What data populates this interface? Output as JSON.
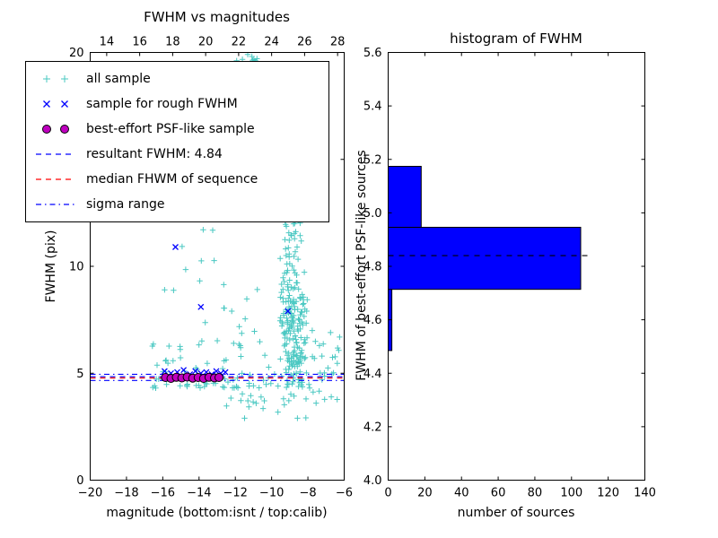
{
  "figure": {
    "background": "#ffffff"
  },
  "chart_data": [
    {
      "type": "scatter",
      "title": "FWHM vs magnitudes",
      "xlabel": "magnitude (bottom:isnt / top:calib)",
      "ylabel": "FWHM (pix)",
      "xlim": [
        -20,
        -6
      ],
      "ylim": [
        0,
        20
      ],
      "top_xlim": [
        13.0,
        28.4
      ],
      "xticks_bottom": [
        [
          -20,
          "−20"
        ],
        [
          -18,
          "−18"
        ],
        [
          -16,
          "−16"
        ],
        [
          -14,
          "−14"
        ],
        [
          -12,
          "−12"
        ],
        [
          -10,
          "−10"
        ],
        [
          -8,
          "−8"
        ],
        [
          -6,
          "−6"
        ]
      ],
      "xticks_top": [
        [
          14,
          "14"
        ],
        [
          16,
          "16"
        ],
        [
          18,
          "18"
        ],
        [
          20,
          "20"
        ],
        [
          22,
          "22"
        ],
        [
          24,
          "24"
        ],
        [
          26,
          "26"
        ],
        [
          28,
          "28"
        ]
      ],
      "yticks": [
        [
          0,
          "0"
        ],
        [
          5,
          "5"
        ],
        [
          10,
          "10"
        ],
        [
          15,
          "15"
        ],
        [
          20,
          "20"
        ]
      ],
      "resultant_fwhm": 4.84,
      "median_fwhm": 4.78,
      "sigma_range": [
        4.66,
        4.95
      ],
      "seed": 7,
      "all_sample_clusters": [
        {
          "n": 150,
          "x": [
            -9.9,
            -7.7
          ],
          "xd": "c3",
          "y": [
            4.3,
            8.6
          ],
          "yd": "u"
        },
        {
          "n": 115,
          "x": [
            -9.8,
            -8.1
          ],
          "xd": "c3",
          "y": [
            8.6,
            16.2
          ],
          "yd": "u"
        },
        {
          "n": 26,
          "x": [
            -9.9,
            -8.5
          ],
          "xd": "c",
          "y": [
            16.2,
            18.6
          ],
          "yd": "u"
        },
        {
          "n": 22,
          "x": [
            -12.4,
            -9.2
          ],
          "xd": "c",
          "y": [
            18.6,
            20.0
          ],
          "yd": "u"
        },
        {
          "n": 58,
          "x": [
            -16.6,
            -11.2
          ],
          "xd": "u",
          "y": [
            4.3,
            6.6
          ],
          "yd": "lo"
        },
        {
          "n": 13,
          "x": [
            -15.9,
            -12.2
          ],
          "xd": "u",
          "y": [
            7.2,
            12.3
          ],
          "yd": "u"
        },
        {
          "n": 46,
          "x": [
            -11.9,
            -6.1
          ],
          "xd": "u",
          "y": [
            3.6,
            5.8
          ],
          "yd": "u"
        },
        {
          "n": 12,
          "x": [
            -12.7,
            -8.0
          ],
          "xd": "u",
          "y": [
            2.7,
            3.9
          ],
          "yd": "u"
        },
        {
          "n": 18,
          "x": [
            -7.9,
            -6.0
          ],
          "xd": "u",
          "y": [
            4.4,
            7.0
          ],
          "yd": "u"
        },
        {
          "n": 10,
          "x": [
            -12.6,
            -10.3
          ],
          "xd": "u",
          "y": [
            5.8,
            10.2
          ],
          "yd": "u"
        }
      ],
      "rough_sample_points": [
        [
          -15.9,
          5.1
        ],
        [
          -15.55,
          5.0
        ],
        [
          -15.2,
          5.05
        ],
        [
          -14.85,
          5.15
        ],
        [
          -14.5,
          4.95
        ],
        [
          -14.2,
          5.1
        ],
        [
          -13.9,
          5.0
        ],
        [
          -13.6,
          5.05
        ],
        [
          -13.3,
          4.95
        ],
        [
          -13.05,
          5.1
        ],
        [
          -12.8,
          5.0
        ],
        [
          -12.55,
          5.05
        ],
        [
          -15.3,
          10.9
        ],
        [
          -13.9,
          8.1
        ],
        [
          -9.1,
          7.9
        ]
      ],
      "psf_sample_points": [
        [
          -15.85,
          4.8
        ],
        [
          -15.55,
          4.76
        ],
        [
          -15.25,
          4.81
        ],
        [
          -14.95,
          4.78
        ],
        [
          -14.65,
          4.82
        ],
        [
          -14.35,
          4.77
        ],
        [
          -14.05,
          4.8
        ],
        [
          -13.75,
          4.76
        ],
        [
          -13.45,
          4.81
        ],
        [
          -13.15,
          4.78
        ],
        [
          -12.9,
          4.8
        ]
      ],
      "legend": [
        {
          "label": "all sample",
          "kind": "scatter",
          "marker": "plus",
          "color": "#4ac8c2"
        },
        {
          "label": "sample for rough FWHM",
          "kind": "scatter",
          "marker": "x",
          "color": "#0000ff"
        },
        {
          "label": "best-effort PSF-like sample",
          "kind": "scatter",
          "marker": "circle",
          "color": "#bf00bf",
          "edge": "#000000"
        },
        {
          "label": "resultant FWHM: 4.84",
          "kind": "line",
          "style": "dashed",
          "color": "#0000ff"
        },
        {
          "label": "median FHWM of sequence",
          "kind": "line",
          "style": "dashed",
          "color": "#ff0000"
        },
        {
          "label": "sigma range",
          "kind": "line",
          "style": "dashdot",
          "color": "#0000ff"
        }
      ]
    },
    {
      "type": "bar",
      "orientation": "horizontal",
      "title": "histogram of FWHM",
      "xlabel": "number of sources",
      "ylabel": "FWHM of best-effort PSF-like sources",
      "xlim": [
        0,
        140
      ],
      "ylim": [
        4.0,
        5.6
      ],
      "xticks": [
        [
          0,
          "0"
        ],
        [
          20,
          "20"
        ],
        [
          40,
          "40"
        ],
        [
          60,
          "60"
        ],
        [
          80,
          "80"
        ],
        [
          100,
          "100"
        ],
        [
          120,
          "120"
        ],
        [
          140,
          "140"
        ]
      ],
      "yticks": [
        [
          4.0,
          "4.0"
        ],
        [
          4.2,
          "4.2"
        ],
        [
          4.4,
          "4.4"
        ],
        [
          4.6,
          "4.6"
        ],
        [
          4.8,
          "4.8"
        ],
        [
          5.0,
          "5.0"
        ],
        [
          5.2,
          "5.2"
        ],
        [
          5.4,
          "5.4"
        ],
        [
          5.6,
          "5.6"
        ]
      ],
      "bin_edges": [
        4.485,
        4.714,
        4.946,
        5.174
      ],
      "counts": [
        2,
        105,
        18
      ],
      "bar_fill": "#0000ff",
      "bar_edge": "#000000",
      "median_line": {
        "y": 4.84,
        "x_start": 0,
        "x_end": 110,
        "color": "#000000"
      }
    }
  ]
}
